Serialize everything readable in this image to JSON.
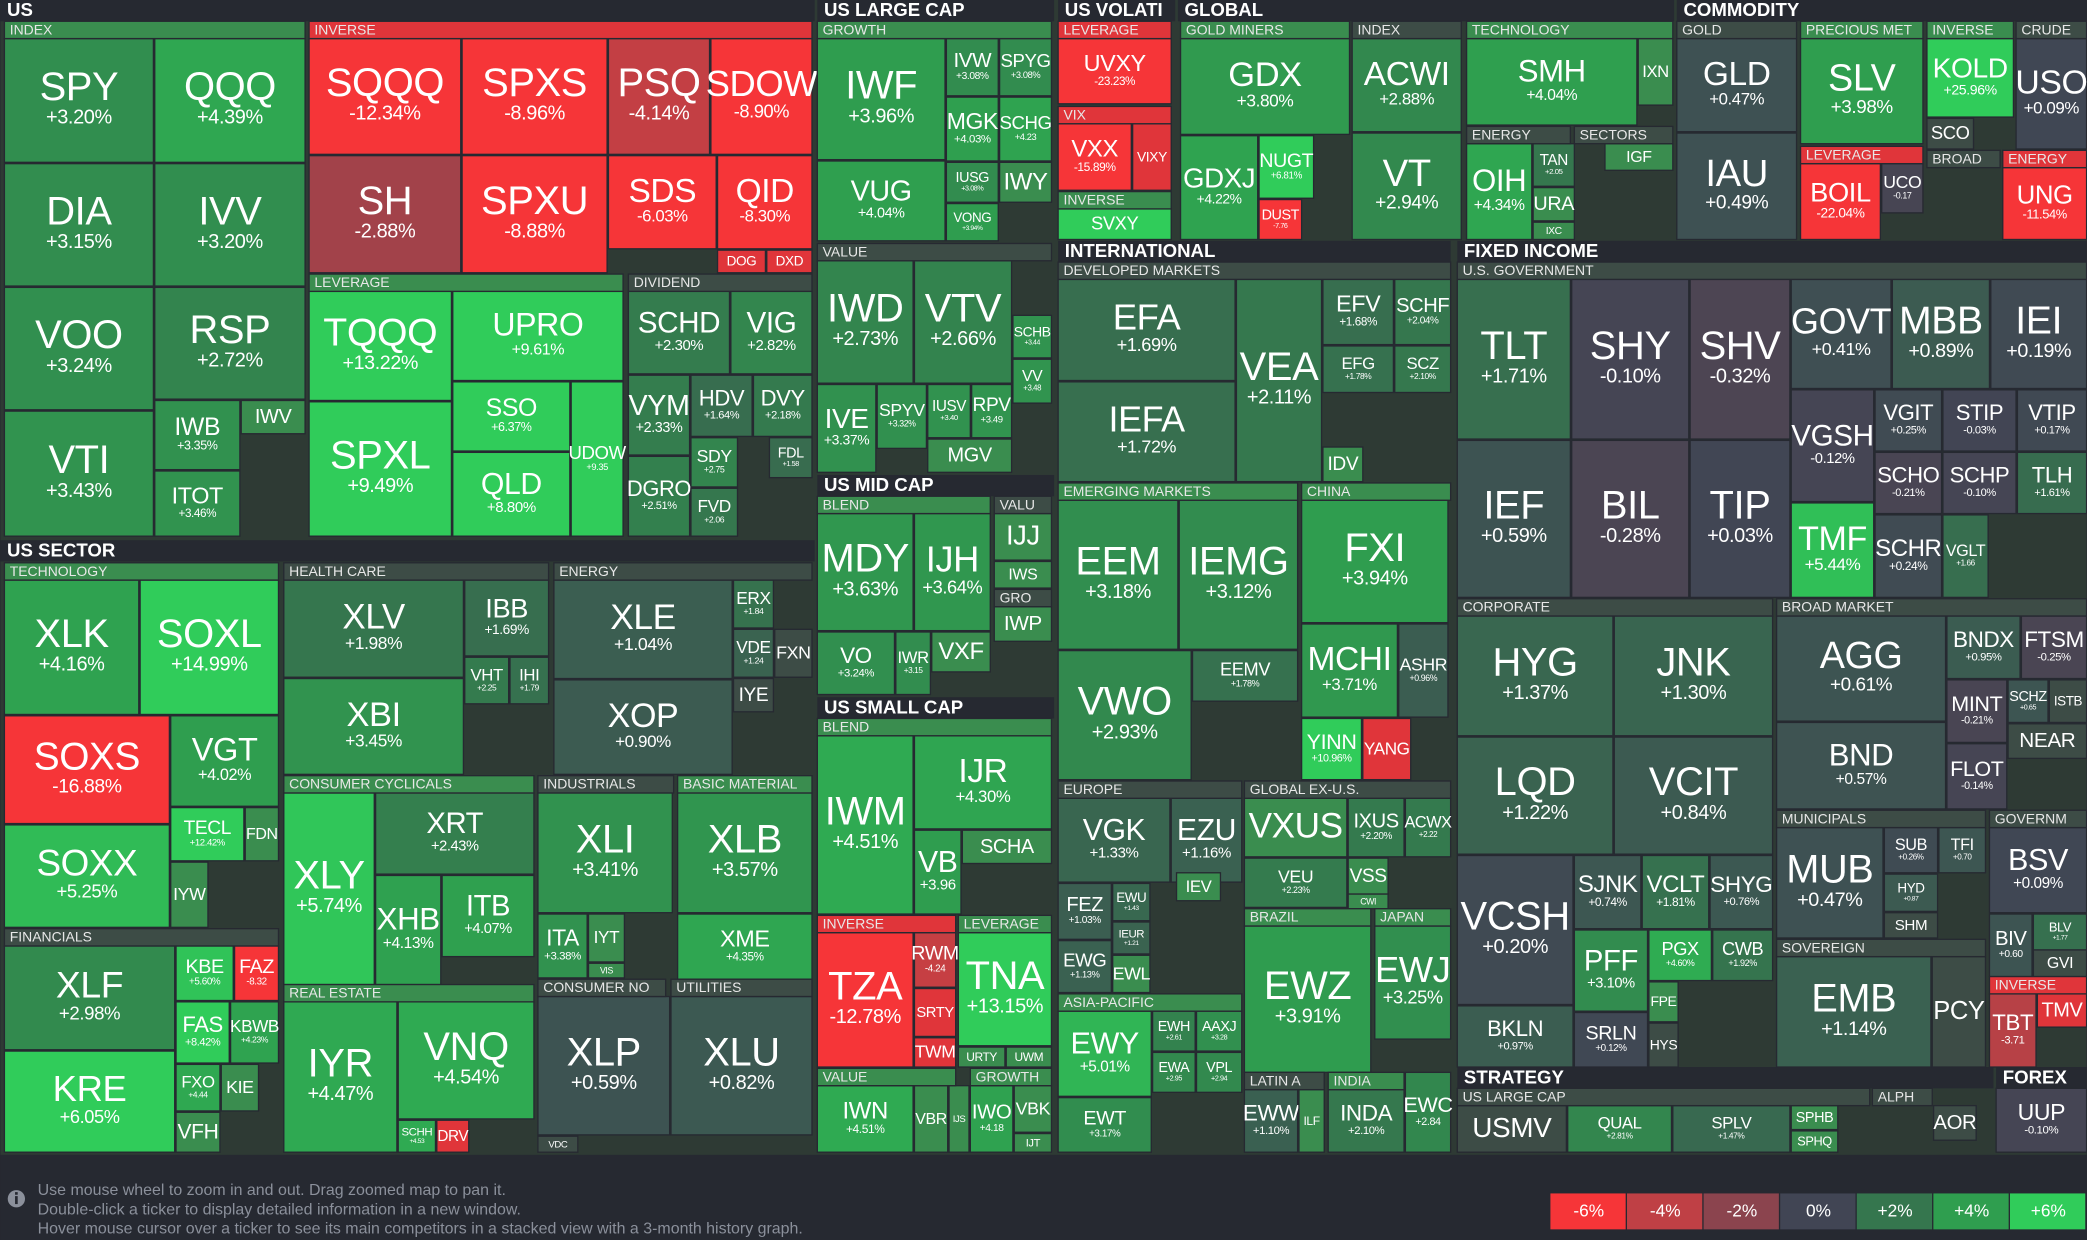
{
  "sections": [
    "US",
    "US LARGE CAP",
    "US VOLATI",
    "GLOBAL",
    "COMMODITY",
    "INTERNATIONAL",
    "FIXED INCOME",
    "US SECTOR",
    "US MID CAP",
    "US SMALL CAP",
    "STRATEGY",
    "FOREX"
  ],
  "groups": [
    "INDEX",
    "INVERSE",
    "LEVERAGE",
    "DIVIDEND",
    "GROWTH",
    "VALUE",
    "LEVERAGE",
    "VIX",
    "INVERSE",
    "GOLD MINERS",
    "INDEX",
    "TECHNOLOGY",
    "ENERGY",
    "SECTORS",
    "GOLD",
    "PRECIOUS MET",
    "INVERSE",
    "CRUDE",
    "LEVERAGE",
    "BROAD",
    "ENERGY",
    "DEVELOPED MARKETS",
    "EMERGING MARKETS",
    "CHINA",
    "EUROPE",
    "GLOBAL EX-U.S.",
    "BRAZIL",
    "JAPAN",
    "ASIA-PACIFIC",
    "LATIN A",
    "INDIA",
    "U.S. GOVERNMENT",
    "CORPORATE",
    "BROAD MARKET",
    "MUNICIPALS",
    "GOVERNM",
    "SOVEREIGN",
    "INVERSE",
    "TECHNOLOGY",
    "HEALTH CARE",
    "ENERGY",
    "CONSUMER CYCLICALS",
    "INDUSTRIALS",
    "BASIC MATERIAL",
    "REAL ESTATE",
    "CONSUMER NO",
    "UTILITIES",
    "FINANCIALS",
    "BLEND",
    "VALU",
    "GRO",
    "BLEND",
    "INVERSE",
    "LEVERAGE",
    "VALUE",
    "GROWTH",
    "US LARGE CAP",
    "ALPH"
  ],
  "tiles": [
    {
      "ticker": "SPY",
      "change": "+3.20%"
    },
    {
      "ticker": "QQQ",
      "change": "+4.39%"
    },
    {
      "ticker": "DIA",
      "change": "+3.15%"
    },
    {
      "ticker": "IVV",
      "change": "+3.20%"
    },
    {
      "ticker": "VOO",
      "change": "+3.24%"
    },
    {
      "ticker": "RSP",
      "change": "+2.72%"
    },
    {
      "ticker": "VTI",
      "change": "+3.43%"
    },
    {
      "ticker": "IWB",
      "change": "+3.35%"
    },
    {
      "ticker": "IWV"
    },
    {
      "ticker": "ITOT",
      "change": "+3.46%"
    },
    {
      "ticker": "SQQQ",
      "change": "-12.34%"
    },
    {
      "ticker": "SPXS",
      "change": "-8.96%"
    },
    {
      "ticker": "PSQ",
      "change": "-4.14%"
    },
    {
      "ticker": "SDOW",
      "change": "-8.90%"
    },
    {
      "ticker": "SH",
      "change": "-2.88%"
    },
    {
      "ticker": "SPXU",
      "change": "-8.88%"
    },
    {
      "ticker": "SDS",
      "change": "-6.03%"
    },
    {
      "ticker": "QID",
      "change": "-8.30%"
    },
    {
      "ticker": "DOG"
    },
    {
      "ticker": "DXD"
    },
    {
      "ticker": "TQQQ",
      "change": "+13.22%"
    },
    {
      "ticker": "UPRO",
      "change": "+9.61%"
    },
    {
      "ticker": "SPXL",
      "change": "+9.49%"
    },
    {
      "ticker": "SSO",
      "change": "+6.37%"
    },
    {
      "ticker": "QLD",
      "change": "+8.80%"
    },
    {
      "ticker": "UDOW",
      "change": "+9.35"
    },
    {
      "ticker": "SCHD",
      "change": "+2.30%"
    },
    {
      "ticker": "VIG",
      "change": "+2.82%"
    },
    {
      "ticker": "VYM",
      "change": "+2.33%"
    },
    {
      "ticker": "HDV",
      "change": "+1.64%"
    },
    {
      "ticker": "DVY",
      "change": "+2.18%"
    },
    {
      "ticker": "SDY",
      "change": "+2.75"
    },
    {
      "ticker": "FDL",
      "change": "+1.58"
    },
    {
      "ticker": "DGRO",
      "change": "+2.51%"
    },
    {
      "ticker": "FVD",
      "change": "+2.06"
    },
    {
      "ticker": "IWF",
      "change": "+3.96%"
    },
    {
      "ticker": "IVW",
      "change": "+3.08%"
    },
    {
      "ticker": "SPYG",
      "change": "+3.08%"
    },
    {
      "ticker": "MGK",
      "change": "+4.03%"
    },
    {
      "ticker": "SCHG",
      "change": "+4.23"
    },
    {
      "ticker": "VUG",
      "change": "+4.04%"
    },
    {
      "ticker": "IUSG",
      "change": "+3.08%"
    },
    {
      "ticker": "IWY"
    },
    {
      "ticker": "VONG",
      "change": "+3.94%"
    },
    {
      "ticker": "IWD",
      "change": "+2.73%"
    },
    {
      "ticker": "VTV",
      "change": "+2.66%"
    },
    {
      "ticker": "SCHB",
      "change": "+3.44"
    },
    {
      "ticker": "VV",
      "change": "+3.48"
    },
    {
      "ticker": "IVE",
      "change": "+3.37%"
    },
    {
      "ticker": "SPYV",
      "change": "+3.32%"
    },
    {
      "ticker": "IUSV",
      "change": "+3.40"
    },
    {
      "ticker": "RPV",
      "change": "+3.49"
    },
    {
      "ticker": "MGV"
    },
    {
      "ticker": "UVXY",
      "change": "-23.23%"
    },
    {
      "ticker": "VXX",
      "change": "-15.89%"
    },
    {
      "ticker": "VIXY"
    },
    {
      "ticker": "SVXY"
    },
    {
      "ticker": "GDX",
      "change": "+3.80%"
    },
    {
      "ticker": "GDXJ",
      "change": "+4.22%"
    },
    {
      "ticker": "NUGT",
      "change": "+6.81%"
    },
    {
      "ticker": "DUST",
      "change": "-7.76"
    },
    {
      "ticker": "ACWI",
      "change": "+2.88%"
    },
    {
      "ticker": "VT",
      "change": "+2.94%"
    },
    {
      "ticker": "SMH",
      "change": "+4.04%"
    },
    {
      "ticker": "IXN"
    },
    {
      "ticker": "OIH",
      "change": "+4.34%"
    },
    {
      "ticker": "TAN",
      "change": "+2.05"
    },
    {
      "ticker": "IGF"
    },
    {
      "ticker": "URA"
    },
    {
      "ticker": "IXC"
    },
    {
      "ticker": "GLD",
      "change": "+0.47%"
    },
    {
      "ticker": "IAU",
      "change": "+0.49%"
    },
    {
      "ticker": "SLV",
      "change": "+3.98%"
    },
    {
      "ticker": "KOLD",
      "change": "+25.96%"
    },
    {
      "ticker": "SCO"
    },
    {
      "ticker": "USO",
      "change": "+0.09%"
    },
    {
      "ticker": "BOIL",
      "change": "-22.04%"
    },
    {
      "ticker": "UCO",
      "change": "-0.17"
    },
    {
      "ticker": "UNG",
      "change": "-11.54%"
    },
    {
      "ticker": "EFA",
      "change": "+1.69%"
    },
    {
      "ticker": "IEFA",
      "change": "+1.72%"
    },
    {
      "ticker": "VEA",
      "change": "+2.11%"
    },
    {
      "ticker": "EFV",
      "change": "+1.68%"
    },
    {
      "ticker": "SCHF",
      "change": "+2.04%"
    },
    {
      "ticker": "EFG",
      "change": "+1.78%"
    },
    {
      "ticker": "SCZ",
      "change": "+2.10%"
    },
    {
      "ticker": "IDV"
    },
    {
      "ticker": "EEM",
      "change": "+3.18%"
    },
    {
      "ticker": "IEMG",
      "change": "+3.12%"
    },
    {
      "ticker": "VWO",
      "change": "+2.93%"
    },
    {
      "ticker": "EEMV",
      "change": "+1.78%"
    },
    {
      "ticker": "FXI",
      "change": "+3.94%"
    },
    {
      "ticker": "MCHI",
      "change": "+3.71%"
    },
    {
      "ticker": "ASHR",
      "change": "+0.96%"
    },
    {
      "ticker": "YINN",
      "change": "+10.96%"
    },
    {
      "ticker": "YANG"
    },
    {
      "ticker": "VGK",
      "change": "+1.33%"
    },
    {
      "ticker": "EZU",
      "change": "+1.16%"
    },
    {
      "ticker": "FEZ",
      "change": "+1.03%"
    },
    {
      "ticker": "EWU",
      "change": "+1.43"
    },
    {
      "ticker": "IEV"
    },
    {
      "ticker": "IEUR",
      "change": "+1.21"
    },
    {
      "ticker": "EWG",
      "change": "+1.13%"
    },
    {
      "ticker": "EWL"
    },
    {
      "ticker": "VXUS"
    },
    {
      "ticker": "IXUS",
      "change": "+2.20%"
    },
    {
      "ticker": "ACWX",
      "change": "+2.22"
    },
    {
      "ticker": "VEU",
      "change": "+2.23%"
    },
    {
      "ticker": "VSS"
    },
    {
      "ticker": "CWI"
    },
    {
      "ticker": "EWZ",
      "change": "+3.91%"
    },
    {
      "ticker": "EWJ",
      "change": "+3.25%"
    },
    {
      "ticker": "EWY",
      "change": "+5.01%"
    },
    {
      "ticker": "EWH",
      "change": "+2.61"
    },
    {
      "ticker": "AAXJ",
      "change": "+3.28"
    },
    {
      "ticker": "EWA",
      "change": "+2.95"
    },
    {
      "ticker": "VPL",
      "change": "+2.94"
    },
    {
      "ticker": "EWT",
      "change": "+3.17%"
    },
    {
      "ticker": "EWW",
      "change": "+1.10%"
    },
    {
      "ticker": "ILF"
    },
    {
      "ticker": "INDA",
      "change": "+2.10%"
    },
    {
      "ticker": "EWC",
      "change": "+2.84"
    },
    {
      "ticker": "TLT",
      "change": "+1.71%"
    },
    {
      "ticker": "SHY",
      "change": "-0.10%"
    },
    {
      "ticker": "SHV",
      "change": "-0.32%"
    },
    {
      "ticker": "GOVT",
      "change": "+0.41%"
    },
    {
      "ticker": "MBB",
      "change": "+0.89%"
    },
    {
      "ticker": "IEI",
      "change": "+0.19%"
    },
    {
      "ticker": "IEF",
      "change": "+0.59%"
    },
    {
      "ticker": "BIL",
      "change": "-0.28%"
    },
    {
      "ticker": "TIP",
      "change": "+0.03%"
    },
    {
      "ticker": "VGSH",
      "change": "-0.12%"
    },
    {
      "ticker": "VGIT",
      "change": "+0.25%"
    },
    {
      "ticker": "STIP",
      "change": "-0.03%"
    },
    {
      "ticker": "VTIP",
      "change": "+0.17%"
    },
    {
      "ticker": "SCHO",
      "change": "-0.21%"
    },
    {
      "ticker": "SCHP",
      "change": "-0.10%"
    },
    {
      "ticker": "TLH",
      "change": "+1.61%"
    },
    {
      "ticker": "TMF",
      "change": "+5.44%"
    },
    {
      "ticker": "SCHR",
      "change": "+0.24%"
    },
    {
      "ticker": "VGLT",
      "change": "+1.66"
    },
    {
      "ticker": "HYG",
      "change": "+1.37%"
    },
    {
      "ticker": "JNK",
      "change": "+1.30%"
    },
    {
      "ticker": "LQD",
      "change": "+1.22%"
    },
    {
      "ticker": "VCIT",
      "change": "+0.84%"
    },
    {
      "ticker": "VCSH",
      "change": "+0.20%"
    },
    {
      "ticker": "SJNK",
      "change": "+0.74%"
    },
    {
      "ticker": "VCLT",
      "change": "+1.81%"
    },
    {
      "ticker": "SHYG",
      "change": "+0.76%"
    },
    {
      "ticker": "PFF",
      "change": "+3.10%"
    },
    {
      "ticker": "PGX",
      "change": "+4.60%"
    },
    {
      "ticker": "CWB",
      "change": "+1.92%"
    },
    {
      "ticker": "FPE"
    },
    {
      "ticker": "BKLN",
      "change": "+0.97%"
    },
    {
      "ticker": "SRLN",
      "change": "+0.12%"
    },
    {
      "ticker": "HYS"
    },
    {
      "ticker": "AGG",
      "change": "+0.61%"
    },
    {
      "ticker": "BNDX",
      "change": "+0.95%"
    },
    {
      "ticker": "FTSM",
      "change": "-0.25%"
    },
    {
      "ticker": "MINT",
      "change": "-0.21%"
    },
    {
      "ticker": "SCHZ",
      "change": "+0.65"
    },
    {
      "ticker": "ISTB"
    },
    {
      "ticker": "NEAR"
    },
    {
      "ticker": "BND",
      "change": "+0.57%"
    },
    {
      "ticker": "FLOT",
      "change": "-0.14%"
    },
    {
      "ticker": "MUB",
      "change": "+0.47%"
    },
    {
      "ticker": "SUB",
      "change": "+0.26%"
    },
    {
      "ticker": "TFI",
      "change": "+0.70"
    },
    {
      "ticker": "HYD",
      "change": "+0.87"
    },
    {
      "ticker": "SHM"
    },
    {
      "ticker": "BSV",
      "change": "+0.09%"
    },
    {
      "ticker": "BIV",
      "change": "+0.60"
    },
    {
      "ticker": "BLV",
      "change": "+1.77"
    },
    {
      "ticker": "GVI"
    },
    {
      "ticker": "EMB",
      "change": "+1.14%"
    },
    {
      "ticker": "PCY"
    },
    {
      "ticker": "TBT",
      "change": "-3.71"
    },
    {
      "ticker": "TMV"
    },
    {
      "ticker": "USMV"
    },
    {
      "ticker": "QUAL",
      "change": "+2.81%"
    },
    {
      "ticker": "SPLV",
      "change": "+1.47%"
    },
    {
      "ticker": "SPHB"
    },
    {
      "ticker": "SPHQ"
    },
    {
      "ticker": "AOR"
    },
    {
      "ticker": "UUP",
      "change": "-0.10%"
    },
    {
      "ticker": "XLK",
      "change": "+4.16%"
    },
    {
      "ticker": "SOXL",
      "change": "+14.99%"
    },
    {
      "ticker": "SOXS",
      "change": "-16.88%"
    },
    {
      "ticker": "VGT",
      "change": "+4.02%"
    },
    {
      "ticker": "SOXX",
      "change": "+5.25%"
    },
    {
      "ticker": "TECL",
      "change": "+12.42%"
    },
    {
      "ticker": "FDN"
    },
    {
      "ticker": "IYW"
    },
    {
      "ticker": "XLF",
      "change": "+2.98%"
    },
    {
      "ticker": "KRE",
      "change": "+6.05%"
    },
    {
      "ticker": "KBE",
      "change": "+5.60%"
    },
    {
      "ticker": "FAZ",
      "change": "-8.32"
    },
    {
      "ticker": "FAS",
      "change": "+8.42%"
    },
    {
      "ticker": "KBWB",
      "change": "+4.23%"
    },
    {
      "ticker": "FXO",
      "change": "+4.44"
    },
    {
      "ticker": "KIE"
    },
    {
      "ticker": "VFH"
    },
    {
      "ticker": "XLV",
      "change": "+1.98%"
    },
    {
      "ticker": "IBB",
      "change": "+1.69%"
    },
    {
      "ticker": "XBI",
      "change": "+3.45%"
    },
    {
      "ticker": "VHT",
      "change": "+2.25"
    },
    {
      "ticker": "IHI",
      "change": "+1.79"
    },
    {
      "ticker": "XLE",
      "change": "+1.04%"
    },
    {
      "ticker": "ERX",
      "change": "+1.84"
    },
    {
      "ticker": "VDE",
      "change": "+1.24"
    },
    {
      "ticker": "FXN"
    },
    {
      "ticker": "XOP",
      "change": "+0.90%"
    },
    {
      "ticker": "IYE"
    },
    {
      "ticker": "XLY",
      "change": "+5.74%"
    },
    {
      "ticker": "XRT",
      "change": "+2.43%"
    },
    {
      "ticker": "XHB",
      "change": "+4.13%"
    },
    {
      "ticker": "ITB",
      "change": "+4.07%"
    },
    {
      "ticker": "XLI",
      "change": "+3.41%"
    },
    {
      "ticker": "ITA",
      "change": "+3.38%"
    },
    {
      "ticker": "IYT"
    },
    {
      "ticker": "VIS"
    },
    {
      "ticker": "XLB",
      "change": "+3.57%"
    },
    {
      "ticker": "XME",
      "change": "+4.35%"
    },
    {
      "ticker": "IYR",
      "change": "+4.47%"
    },
    {
      "ticker": "VNQ",
      "change": "+4.54%"
    },
    {
      "ticker": "SCHH",
      "change": "+4.53"
    },
    {
      "ticker": "DRV"
    },
    {
      "ticker": "XLP",
      "change": "+0.59%"
    },
    {
      "ticker": "VDC"
    },
    {
      "ticker": "XLU",
      "change": "+0.82%"
    },
    {
      "ticker": "MDY",
      "change": "+3.63%"
    },
    {
      "ticker": "IJH",
      "change": "+3.64%"
    },
    {
      "ticker": "VO",
      "change": "+3.24%"
    },
    {
      "ticker": "IWR",
      "change": "+3.15"
    },
    {
      "ticker": "VXF"
    },
    {
      "ticker": "IJJ"
    },
    {
      "ticker": "IWS"
    },
    {
      "ticker": "IWP"
    },
    {
      "ticker": "IWM",
      "change": "+4.51%"
    },
    {
      "ticker": "IJR",
      "change": "+4.30%"
    },
    {
      "ticker": "VB",
      "change": "+3.96"
    },
    {
      "ticker": "SCHA"
    },
    {
      "ticker": "TZA",
      "change": "-12.78%"
    },
    {
      "ticker": "RWM",
      "change": "-4.24"
    },
    {
      "ticker": "SRTY"
    },
    {
      "ticker": "TWM"
    },
    {
      "ticker": "TNA",
      "change": "+13.15%"
    },
    {
      "ticker": "URTY"
    },
    {
      "ticker": "UWM"
    },
    {
      "ticker": "IWN",
      "change": "+4.51%"
    },
    {
      "ticker": "VBR"
    },
    {
      "ticker": "IJS"
    },
    {
      "ticker": "IWO",
      "change": "+4.18"
    },
    {
      "ticker": "VBK"
    },
    {
      "ticker": "IJT"
    }
  ],
  "footer": [
    "Use mouse wheel to zoom in and out. Drag zoomed map to pan it.",
    "Double-click a ticker to display detailed information in a new window.",
    "Hover mouse cursor over a ticker to see its main competitors in a stacked view with a 3-month history graph."
  ],
  "legend": [
    "-6%",
    "-4%",
    "-2%",
    "0%",
    "+2%",
    "+4%",
    "+6%"
  ]
}
